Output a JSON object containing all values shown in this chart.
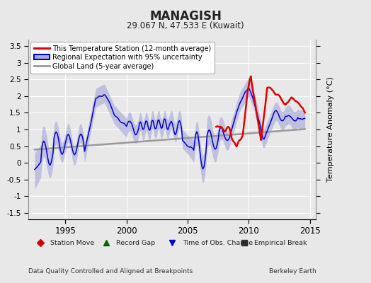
{
  "title": "MANAGISH",
  "subtitle": "29.067 N, 47.533 E (Kuwait)",
  "ylabel": "Temperature Anomaly (°C)",
  "footer_left": "Data Quality Controlled and Aligned at Breakpoints",
  "footer_right": "Berkeley Earth",
  "xlim": [
    1992.0,
    2015.5
  ],
  "ylim": [
    -1.7,
    3.7
  ],
  "yticks": [
    -1.5,
    -1.0,
    -0.5,
    0.0,
    0.5,
    1.0,
    1.5,
    2.0,
    2.5,
    3.0,
    3.5
  ],
  "xticks": [
    1995,
    2000,
    2005,
    2010,
    2015
  ],
  "bg_color": "#e8e8e8",
  "plot_bg_color": "#e8e8e8",
  "grid_color": "#cccccc",
  "red_line_color": "#dd0000",
  "blue_line_color": "#0000cc",
  "blue_fill_color": "#aaaadd",
  "gray_line_color": "#999999",
  "legend_red_label": "This Temperature Station (12-month average)",
  "legend_blue_label": "Regional Expectation with 95% uncertainty",
  "legend_gray_label": "Global Land (5-year average)",
  "bottom_legend": [
    {
      "label": "Station Move",
      "color": "#cc0000",
      "marker": "D"
    },
    {
      "label": "Record Gap",
      "color": "#006600",
      "marker": "^"
    },
    {
      "label": "Time of Obs. Change",
      "color": "#0000cc",
      "marker": "v"
    },
    {
      "label": "Empirical Break",
      "color": "#333333",
      "marker": "s"
    }
  ]
}
